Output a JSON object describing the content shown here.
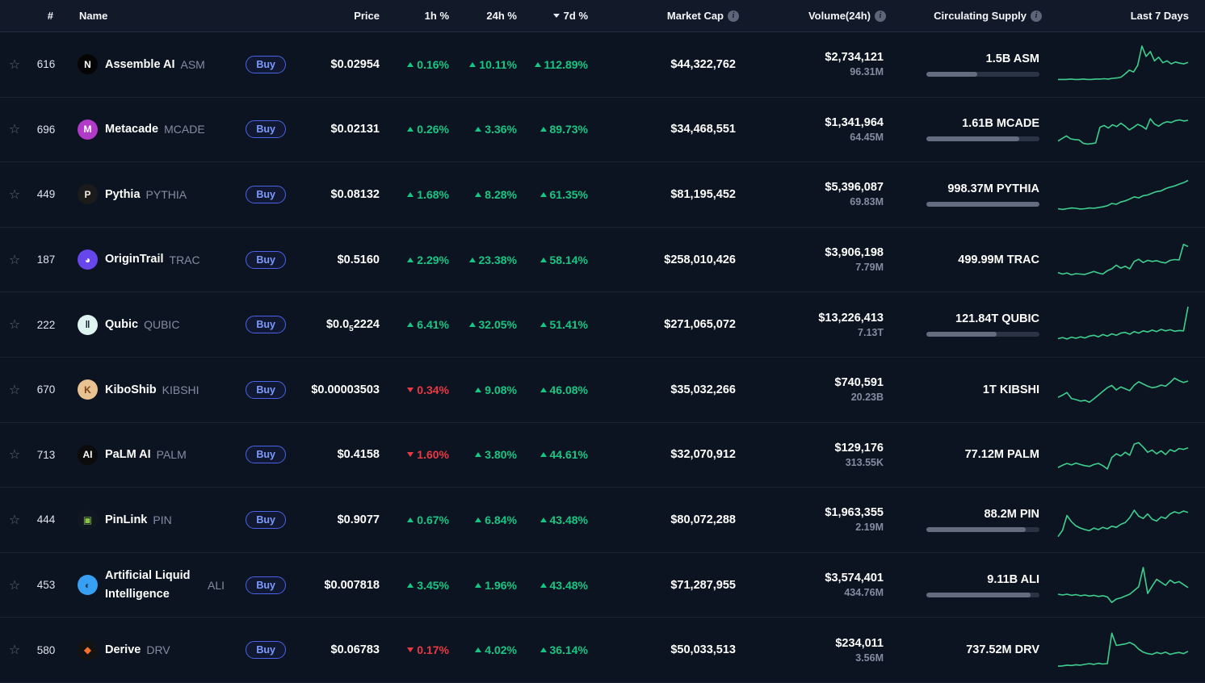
{
  "theme": {
    "background": "#0d1421",
    "up_green": "#16c784",
    "down_red": "#ea3943",
    "buy_blue": "#7e9bff",
    "sparkline_green": "#3ecf8e",
    "secondary_text": "#858ca2"
  },
  "header": {
    "columns": {
      "rank": "#",
      "name": "Name",
      "price": "Price",
      "h1": "1h %",
      "h24": "24h %",
      "d7": "7d %",
      "market_cap": "Market Cap",
      "volume": "Volume(24h)",
      "supply": "Circulating Supply",
      "chart": "Last 7 Days"
    },
    "sorted_by": "7d % descending",
    "info_icon_glyph": "i"
  },
  "table": {
    "buy_label": "Buy",
    "star_glyph": "☆",
    "rows": [
      {
        "rank": "616",
        "name": "Assemble AI",
        "symbol": "ASM",
        "icon": {
          "label": "N",
          "bg": "#050505",
          "fg": "#ffffff"
        },
        "price": "$0.02954",
        "h1": {
          "dir": "up",
          "value": "0.16%"
        },
        "h24": {
          "dir": "up",
          "value": "10.11%"
        },
        "d7": {
          "dir": "up",
          "value": "112.89%"
        },
        "market_cap": "$44,322,762",
        "volume_usd": "$2,734,121",
        "volume_crypto": "96.31M",
        "supply": "1.5B ASM",
        "supply_pct": 45,
        "spark": [
          10,
          10,
          10,
          11,
          10,
          10,
          11,
          10,
          10,
          11,
          11,
          12,
          11,
          13,
          14,
          16,
          25,
          35,
          30,
          48,
          100,
          72,
          85,
          60,
          70,
          55,
          60,
          52,
          57,
          54,
          52,
          56
        ]
      },
      {
        "rank": "696",
        "name": "Metacade",
        "symbol": "MCADE",
        "icon": {
          "label": "M",
          "bg": "#b13ac9",
          "fg": "#ffffff"
        },
        "price": "$0.02131",
        "h1": {
          "dir": "up",
          "value": "0.26%"
        },
        "h24": {
          "dir": "up",
          "value": "3.36%"
        },
        "d7": {
          "dir": "up",
          "value": "89.73%"
        },
        "market_cap": "$34,468,551",
        "volume_usd": "$1,341,964",
        "volume_crypto": "64.45M",
        "supply": "1.61B MCADE",
        "supply_pct": 82,
        "spark": [
          18,
          25,
          32,
          24,
          22,
          21,
          12,
          10,
          11,
          13,
          55,
          60,
          53,
          62,
          57,
          66,
          58,
          48,
          55,
          63,
          58,
          50,
          78,
          64,
          58,
          66,
          70,
          68,
          73,
          75,
          72,
          74
        ]
      },
      {
        "rank": "449",
        "name": "Pythia",
        "symbol": "PYTHIA",
        "icon": {
          "label": "P",
          "bg": "#1b1b1b",
          "fg": "#f2ecdf"
        },
        "price": "$0.08132",
        "h1": {
          "dir": "up",
          "value": "1.68%"
        },
        "h24": {
          "dir": "up",
          "value": "8.28%"
        },
        "d7": {
          "dir": "up",
          "value": "61.35%"
        },
        "market_cap": "$81,195,452",
        "volume_usd": "$5,396,087",
        "volume_crypto": "69.83M",
        "supply": "998.37M PYTHIA",
        "supply_pct": 100,
        "spark": [
          12,
          10,
          12,
          14,
          13,
          11,
          12,
          14,
          13,
          15,
          17,
          20,
          26,
          24,
          30,
          33,
          38,
          44,
          41,
          47,
          49,
          54,
          58,
          60,
          66,
          70,
          73,
          78,
          82,
          88
        ]
      },
      {
        "rank": "187",
        "name": "OriginTrail",
        "symbol": "TRAC",
        "icon": {
          "label": "◕",
          "bg": "#6747ec",
          "fg": "#ffffff"
        },
        "price": "$0.5160",
        "h1": {
          "dir": "up",
          "value": "2.29%"
        },
        "h24": {
          "dir": "up",
          "value": "23.38%"
        },
        "d7": {
          "dir": "up",
          "value": "58.14%"
        },
        "market_cap": "$258,010,426",
        "volume_usd": "$3,906,198",
        "volume_crypto": "7.79M",
        "supply": "499.99M TRAC",
        "supply_pct": null,
        "spark": [
          16,
          12,
          15,
          10,
          13,
          12,
          11,
          15,
          19,
          15,
          12,
          21,
          26,
          36,
          28,
          33,
          26,
          46,
          52,
          43,
          49,
          46,
          48,
          44,
          42,
          49,
          51,
          50,
          92,
          86
        ]
      },
      {
        "rank": "222",
        "name": "Qubic",
        "symbol": "QUBIC",
        "icon": {
          "label": "‖",
          "bg": "#def4f0",
          "fg": "#0f1a2a"
        },
        "price_parts": {
          "pre": "$0.0",
          "sub": "5",
          "post": "2224"
        },
        "h1": {
          "dir": "up",
          "value": "6.41%"
        },
        "h24": {
          "dir": "up",
          "value": "32.05%"
        },
        "d7": {
          "dir": "up",
          "value": "51.41%"
        },
        "market_cap": "$271,065,072",
        "volume_usd": "$13,226,413",
        "volume_crypto": "7.13T",
        "supply": "121.84T QUBIC",
        "supply_pct": 62,
        "spark": [
          12,
          15,
          11,
          16,
          13,
          17,
          14,
          19,
          21,
          17,
          23,
          19,
          25,
          21,
          27,
          29,
          24,
          31,
          27,
          33,
          30,
          35,
          31,
          37,
          33,
          36,
          32,
          34,
          33,
          98
        ]
      },
      {
        "rank": "670",
        "name": "KiboShib",
        "symbol": "KIBSHI",
        "icon": {
          "label": "K",
          "bg": "#e9c291",
          "fg": "#7a4517"
        },
        "price": "$0.00003503",
        "h1": {
          "dir": "down",
          "value": "0.34%"
        },
        "h24": {
          "dir": "up",
          "value": "9.08%"
        },
        "d7": {
          "dir": "up",
          "value": "46.08%"
        },
        "market_cap": "$35,032,266",
        "volume_usd": "$740,591",
        "volume_crypto": "20.23B",
        "supply": "1T KIBSHI",
        "supply_pct": null,
        "spark": [
          30,
          36,
          43,
          27,
          24,
          20,
          22,
          17,
          26,
          36,
          46,
          56,
          62,
          50,
          58,
          53,
          48,
          63,
          72,
          66,
          60,
          56,
          58,
          63,
          60,
          70,
          82,
          75,
          70,
          74
        ]
      },
      {
        "rank": "713",
        "name": "PaLM AI",
        "symbol": "PALM",
        "icon": {
          "label": "AI",
          "bg": "#0b0b0b",
          "fg": "#ffffff"
        },
        "price": "$0.4158",
        "h1": {
          "dir": "down",
          "value": "1.60%"
        },
        "h24": {
          "dir": "up",
          "value": "3.80%"
        },
        "d7": {
          "dir": "up",
          "value": "44.61%"
        },
        "market_cap": "$32,070,912",
        "volume_usd": "$129,176",
        "volume_crypto": "313.55K",
        "supply": "77.12M PALM",
        "supply_pct": null,
        "spark": [
          15,
          21,
          26,
          22,
          27,
          23,
          20,
          18,
          23,
          26,
          20,
          11,
          42,
          52,
          46,
          56,
          48,
          78,
          82,
          70,
          56,
          62,
          52,
          60,
          50,
          63,
          58,
          66,
          64,
          68
        ]
      },
      {
        "rank": "444",
        "name": "PinLink",
        "symbol": "PIN",
        "icon": {
          "label": "▣",
          "bg": "#101722",
          "fg": "#8bc34a"
        },
        "price": "$0.9077",
        "h1": {
          "dir": "up",
          "value": "0.67%"
        },
        "h24": {
          "dir": "up",
          "value": "6.84%"
        },
        "d7": {
          "dir": "up",
          "value": "43.48%"
        },
        "market_cap": "$80,072,288",
        "volume_usd": "$1,963,355",
        "volume_crypto": "2.19M",
        "supply": "88.2M PIN",
        "supply_pct": 88,
        "spark": [
          5,
          22,
          62,
          45,
          34,
          28,
          24,
          21,
          28,
          24,
          30,
          26,
          33,
          30,
          38,
          43,
          56,
          76,
          60,
          54,
          66,
          52,
          47,
          58,
          54,
          66,
          72,
          68,
          74,
          70
        ]
      },
      {
        "rank": "453",
        "name": "Artificial Liquid Intelligence",
        "symbol": "ALI",
        "icon": {
          "label": "◐",
          "bg": "#37a0f4",
          "fg": "#123a5c"
        },
        "price": "$0.007818",
        "h1": {
          "dir": "up",
          "value": "3.45%"
        },
        "h24": {
          "dir": "up",
          "value": "1.96%"
        },
        "d7": {
          "dir": "up",
          "value": "43.48%"
        },
        "market_cap": "$71,287,955",
        "volume_usd": "$3,574,401",
        "volume_crypto": "434.76M",
        "supply": "9.11B ALI",
        "supply_pct": 92,
        "spark": [
          26,
          24,
          26,
          23,
          25,
          22,
          24,
          21,
          23,
          20,
          22,
          19,
          4,
          13,
          16,
          21,
          26,
          36,
          46,
          98,
          28,
          48,
          66,
          58,
          50,
          64,
          56,
          60,
          52,
          44
        ]
      },
      {
        "rank": "580",
        "name": "Derive",
        "symbol": "DRV",
        "icon": {
          "label": "◆",
          "bg": "#131313",
          "fg": "#f6722c"
        },
        "price": "$0.06783",
        "h1": {
          "dir": "down",
          "value": "0.17%"
        },
        "h24": {
          "dir": "up",
          "value": "4.02%"
        },
        "d7": {
          "dir": "up",
          "value": "36.14%"
        },
        "market_cap": "$50,033,513",
        "volume_usd": "$234,011",
        "volume_crypto": "3.56M",
        "supply": "737.52M DRV",
        "supply_pct": null,
        "spark": [
          6,
          7,
          9,
          8,
          10,
          9,
          11,
          13,
          11,
          14,
          12,
          13,
          95,
          62,
          64,
          66,
          70,
          64,
          52,
          44,
          40,
          38,
          43,
          40,
          44,
          38,
          41,
          43,
          40,
          46
        ]
      }
    ]
  }
}
